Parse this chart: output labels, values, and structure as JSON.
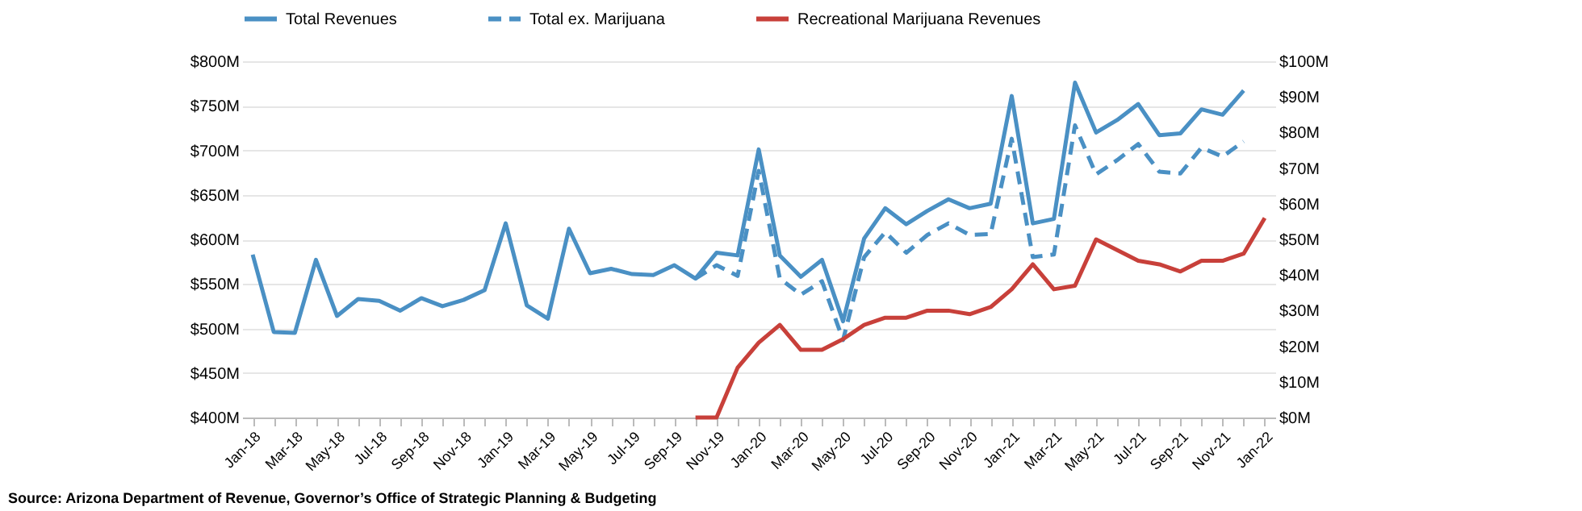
{
  "chart_data": {
    "type": "line",
    "categories": [
      "Jan-18",
      null,
      "Mar-18",
      null,
      "May-18",
      null,
      "Jul-18",
      null,
      "Sep-18",
      null,
      "Nov-18",
      null,
      "Jan-19",
      null,
      "Mar-19",
      null,
      "May-19",
      null,
      "Jul-19",
      null,
      "Sep-19",
      null,
      "Nov-19",
      null,
      "Jan-20",
      null,
      "Mar-20",
      null,
      "May-20",
      null,
      "Jul-20",
      null,
      "Sep-20",
      null,
      "Nov-20",
      null,
      "Jan-21",
      null,
      "Mar-21",
      null,
      "May-21",
      null,
      "Jul-21",
      null,
      "Sep-21",
      null,
      "Nov-21",
      null,
      "Jan-22"
    ],
    "series": [
      {
        "name": "Total Revenues",
        "color": "#4a90c4",
        "line_style": "solid",
        "values": [
          583,
          496,
          495,
          577,
          514,
          533,
          531,
          520,
          534,
          525,
          532,
          543,
          618,
          526,
          511,
          612,
          562,
          567,
          561,
          560,
          571,
          556,
          585,
          582,
          701,
          582,
          558,
          577,
          508,
          601,
          635,
          617,
          632,
          645,
          635,
          640,
          761,
          618,
          623,
          776,
          720,
          734,
          752,
          717,
          719,
          746,
          740,
          767,
          null
        ]
      },
      {
        "name": "Total ex. Marijuana",
        "color": "#4a90c4",
        "line_style": "dashed",
        "values": [
          null,
          null,
          null,
          null,
          null,
          null,
          null,
          null,
          null,
          null,
          null,
          null,
          null,
          null,
          null,
          null,
          null,
          null,
          null,
          null,
          null,
          556,
          571,
          559,
          677,
          556,
          538,
          553,
          487,
          580,
          608,
          585,
          605,
          618,
          605,
          606,
          713,
          580,
          583,
          728,
          673,
          689,
          707,
          676,
          674,
          703,
          693,
          710,
          null
        ]
      },
      {
        "name": "Recreational Marijuana Revenues",
        "color": "#c8403a",
        "line_style": "solid",
        "axis": "y2",
        "values": [
          null,
          null,
          null,
          null,
          null,
          null,
          null,
          null,
          null,
          null,
          null,
          null,
          null,
          null,
          null,
          null,
          null,
          null,
          null,
          null,
          null,
          0,
          0,
          14,
          21,
          26,
          19,
          19,
          22,
          26,
          28,
          28,
          30,
          30,
          29,
          31,
          36,
          43,
          36,
          37,
          50,
          47,
          44,
          43,
          41,
          44,
          44,
          46,
          56
        ]
      }
    ],
    "ylim": [
      400,
      800
    ],
    "yticks": [
      {
        "value": 400,
        "label": "$400M"
      },
      {
        "value": 450,
        "label": "$450M"
      },
      {
        "value": 500,
        "label": "$500M"
      },
      {
        "value": 550,
        "label": "$550M"
      },
      {
        "value": 600,
        "label": "$600M"
      },
      {
        "value": 650,
        "label": "$650M"
      },
      {
        "value": 700,
        "label": "$700M"
      },
      {
        "value": 750,
        "label": "$750M"
      },
      {
        "value": 800,
        "label": "$800M"
      }
    ],
    "y2lim": [
      0,
      100
    ],
    "y2ticks": [
      {
        "value": 0,
        "label": "$0M"
      },
      {
        "value": 10,
        "label": "$10M"
      },
      {
        "value": 20,
        "label": "$20M"
      },
      {
        "value": 30,
        "label": "$30M"
      },
      {
        "value": 40,
        "label": "$40M"
      },
      {
        "value": 50,
        "label": "$50M"
      },
      {
        "value": 60,
        "label": "$60M"
      },
      {
        "value": 70,
        "label": "$70M"
      },
      {
        "value": 80,
        "label": "$80M"
      },
      {
        "value": 90,
        "label": "$90M"
      },
      {
        "value": 100,
        "label": "$100M"
      }
    ],
    "grid": "y",
    "legend": "top",
    "marker": "none",
    "annotations": [
      "Source: Arizona Department of Revenue, Governor’s Office of Strategic Planning & Budgeting"
    ]
  }
}
